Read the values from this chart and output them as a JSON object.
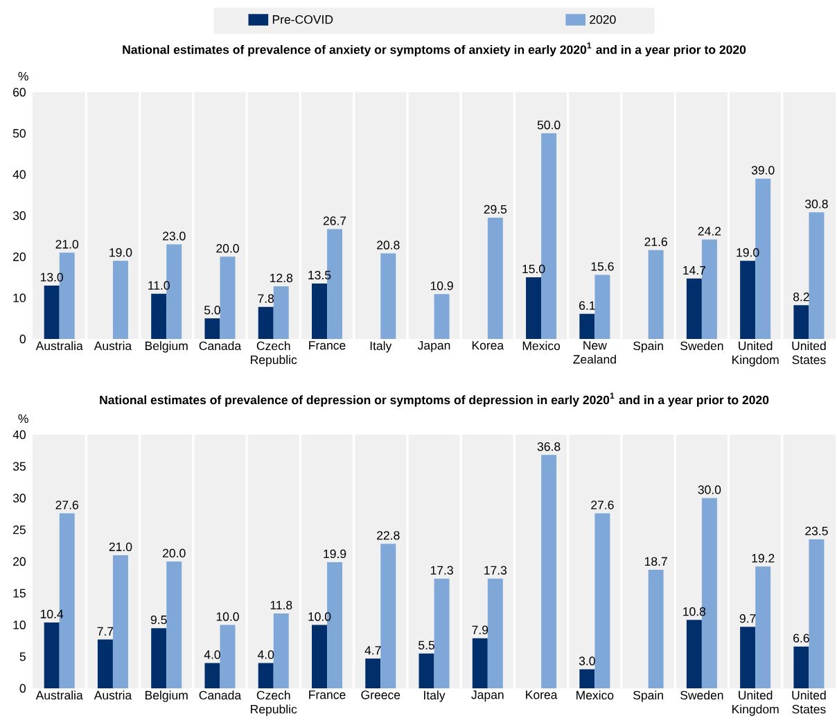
{
  "chart_data": [
    {
      "type": "bar",
      "title": "National estimates of prevalence of anxiety or symptoms of anxiety in early 2020$^{1}$ and in a year prior to 2020",
      "ylabel": "%",
      "categories": [
        "Australia",
        "Austria",
        "Belgium",
        "Canada",
        "Czech Republic",
        "France",
        "Italy",
        "Japan",
        "Korea",
        "Mexico",
        "New Zealand",
        "Spain",
        "Sweden",
        "United Kingdom",
        "United States"
      ],
      "series": [
        {
          "name": "Pre-COVID",
          "color": "#002f6c",
          "values": [
            13.0,
            null,
            11.0,
            5.0,
            7.8,
            13.5,
            null,
            null,
            null,
            15.0,
            6.1,
            null,
            14.7,
            19.0,
            8.2
          ],
          "value_labels": [
            "13.0",
            null,
            "11.0",
            "5.0",
            "7.8",
            "13.5",
            null,
            null,
            null,
            "15.0",
            "6.1",
            null,
            "14.7",
            "19.0",
            "8.2"
          ]
        },
        {
          "name": "2020",
          "color": "#7fa8d9",
          "values": [
            21.0,
            19.0,
            23.0,
            20.0,
            12.8,
            26.7,
            20.8,
            10.9,
            29.5,
            50.0,
            15.6,
            21.6,
            24.2,
            39.0,
            30.8
          ],
          "value_labels": [
            "21.0",
            "19.0",
            "23.0",
            "20.0",
            "12.8",
            "26.7",
            "20.8",
            "10.9",
            "29.5",
            "50.0",
            "15.6",
            "21.6",
            "24.2",
            "39.0",
            "30.8"
          ]
        }
      ],
      "ylim": [
        0,
        60
      ],
      "yticks": [
        0,
        10,
        20,
        30,
        40,
        50,
        60
      ],
      "grid": "x",
      "legend": "top"
    },
    {
      "type": "bar",
      "title": "National estimates of prevalence of depression or symptoms of depression in early 2020$^{1}$ and in a year prior to 2020",
      "ylabel": "%",
      "categories": [
        "Australia",
        "Austria",
        "Belgium",
        "Canada",
        "Czech Republic",
        "France",
        "Greece",
        "Italy",
        "Japan",
        "Korea",
        "Mexico",
        "Spain",
        "Sweden",
        "United Kingdom",
        "United States"
      ],
      "series": [
        {
          "color": "#002f6c",
          "values": [
            10.4,
            7.7,
            9.5,
            4.0,
            4.0,
            10.0,
            4.7,
            5.5,
            7.9,
            null,
            3.0,
            null,
            10.8,
            9.7,
            6.6
          ],
          "value_labels": [
            "10.4",
            "7.7",
            "9.5",
            "4.0",
            "4.0",
            "10.0",
            "4.7",
            "5.5",
            "7.9",
            null,
            "3.0",
            null,
            "10.8",
            "9.7",
            "6.6"
          ]
        },
        {
          "color": "#7fa8d9",
          "values": [
            27.6,
            21.0,
            20.0,
            10.0,
            11.8,
            19.9,
            22.8,
            17.3,
            17.3,
            36.8,
            27.6,
            18.7,
            30.0,
            19.2,
            23.5
          ],
          "value_labels": [
            "27.6",
            "21.0",
            "20.0",
            "10.0",
            "11.8",
            "19.9",
            "22.8",
            "17.3",
            "17.3",
            "36.8",
            "27.6",
            "18.7",
            "30.0",
            "19.2",
            "23.5"
          ]
        }
      ],
      "ylim": [
        0,
        40
      ],
      "yticks": [
        0,
        5,
        10,
        15,
        20,
        25,
        30,
        35,
        40
      ],
      "grid": "x"
    }
  ]
}
